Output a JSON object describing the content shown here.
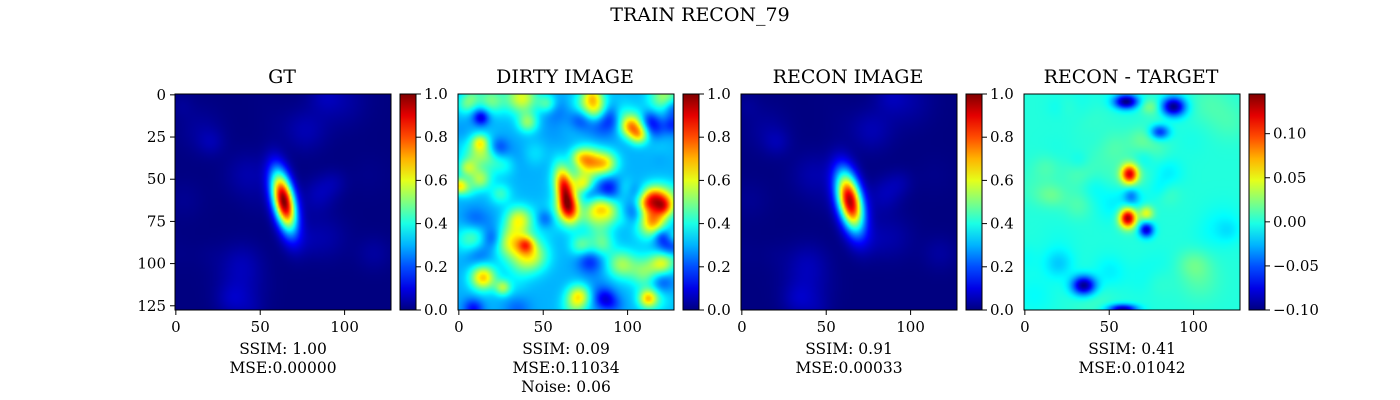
{
  "figure": {
    "title": "TRAIN RECON_79"
  },
  "chart_data": [
    {
      "type": "heatmap",
      "title": "GT",
      "colormap": "jet",
      "xticks": [
        "0",
        "50",
        "100"
      ],
      "yticks": [
        "0",
        "25",
        "50",
        "75",
        "100",
        "125"
      ],
      "image_extent": [
        0,
        128,
        128,
        0
      ],
      "colorbar": {
        "range": [
          0.0,
          1.0
        ],
        "ticks": [
          "0.0",
          "0.2",
          "0.4",
          "0.6",
          "0.8",
          "1.0"
        ]
      },
      "blobs": [
        {
          "x": 64,
          "y": 63,
          "sx": 5,
          "sy": 12,
          "rho": 0.45,
          "amp": 1.0
        }
      ],
      "caption": [
        "SSIM: 1.00",
        "MSE:0.00000"
      ]
    },
    {
      "type": "heatmap",
      "title": "DIRTY IMAGE",
      "colormap": "jet",
      "xticks": [
        "0",
        "50",
        "100"
      ],
      "image_extent": [
        0,
        128,
        128,
        0
      ],
      "colorbar": {
        "range": [
          0.0,
          1.0
        ],
        "ticks": [
          "0.0",
          "0.2",
          "0.4",
          "0.6",
          "0.8",
          "1.0"
        ]
      },
      "blobs": [
        {
          "x": 63,
          "y": 58,
          "sx": 4,
          "sy": 10,
          "rho": 0.4,
          "amp": 0.55
        }
      ],
      "caption": [
        "SSIM: 0.09",
        "MSE:0.11034",
        "Noise: 0.06"
      ]
    },
    {
      "type": "heatmap",
      "title": "RECON IMAGE",
      "colormap": "jet",
      "xticks": [
        "0",
        "50",
        "100"
      ],
      "image_extent": [
        0,
        128,
        128,
        0
      ],
      "colorbar": {
        "range": [
          0.0,
          1.0
        ],
        "ticks": [
          "0.0",
          "0.2",
          "0.4",
          "0.6",
          "0.8",
          "1.0"
        ]
      },
      "blobs": [
        {
          "x": 64,
          "y": 63,
          "sx": 5.5,
          "sy": 12,
          "rho": 0.4,
          "amp": 0.95
        }
      ],
      "caption": [
        "SSIM: 0.91",
        "MSE:0.00033"
      ]
    },
    {
      "type": "heatmap",
      "title": "RECON - TARGET",
      "colormap": "jet",
      "xticks": [
        "0",
        "50",
        "100"
      ],
      "image_extent": [
        0,
        128,
        128,
        0
      ],
      "colorbar": {
        "range": [
          -0.1,
          0.145
        ],
        "ticks": [
          "−0.10",
          "−0.05",
          "0.00",
          "0.05",
          "0.10"
        ],
        "tick_values": [
          -0.1,
          -0.05,
          0.0,
          0.05,
          0.1
        ]
      },
      "blobs": [
        {
          "x": 60,
          "y": 4,
          "sx": 5,
          "sy": 3,
          "amp": -0.1
        },
        {
          "x": 88,
          "y": 7,
          "sx": 5,
          "sy": 4,
          "amp": -0.1
        },
        {
          "x": 80,
          "y": 22,
          "sx": 4,
          "sy": 3,
          "amp": -0.06
        },
        {
          "x": 74,
          "y": 7,
          "sx": 4,
          "sy": 3,
          "amp": 0.02
        },
        {
          "x": 62,
          "y": 47,
          "sx": 3.5,
          "sy": 4,
          "amp": 0.12
        },
        {
          "x": 63,
          "y": 60,
          "sx": 3,
          "sy": 3.5,
          "amp": -0.03
        },
        {
          "x": 61,
          "y": 73,
          "sx": 3.5,
          "sy": 4,
          "amp": 0.14
        },
        {
          "x": 72,
          "y": 70,
          "sx": 3,
          "sy": 3,
          "amp": 0.05
        },
        {
          "x": 72,
          "y": 80,
          "sx": 3,
          "sy": 3,
          "amp": -0.08
        },
        {
          "x": 35,
          "y": 113,
          "sx": 5,
          "sy": 4,
          "amp": -0.1
        },
        {
          "x": 58,
          "y": 127,
          "sx": 6,
          "sy": 2,
          "amp": -0.09
        },
        {
          "x": 15,
          "y": 60,
          "sx": 6,
          "sy": 5,
          "amp": 0.02
        },
        {
          "x": 100,
          "y": 100,
          "sx": 7,
          "sy": 6,
          "amp": 0.015
        },
        {
          "x": 20,
          "y": 100,
          "sx": 6,
          "sy": 6,
          "amp": -0.02
        }
      ],
      "caption": [
        "SSIM: 0.41",
        "MSE:0.01042"
      ]
    }
  ]
}
